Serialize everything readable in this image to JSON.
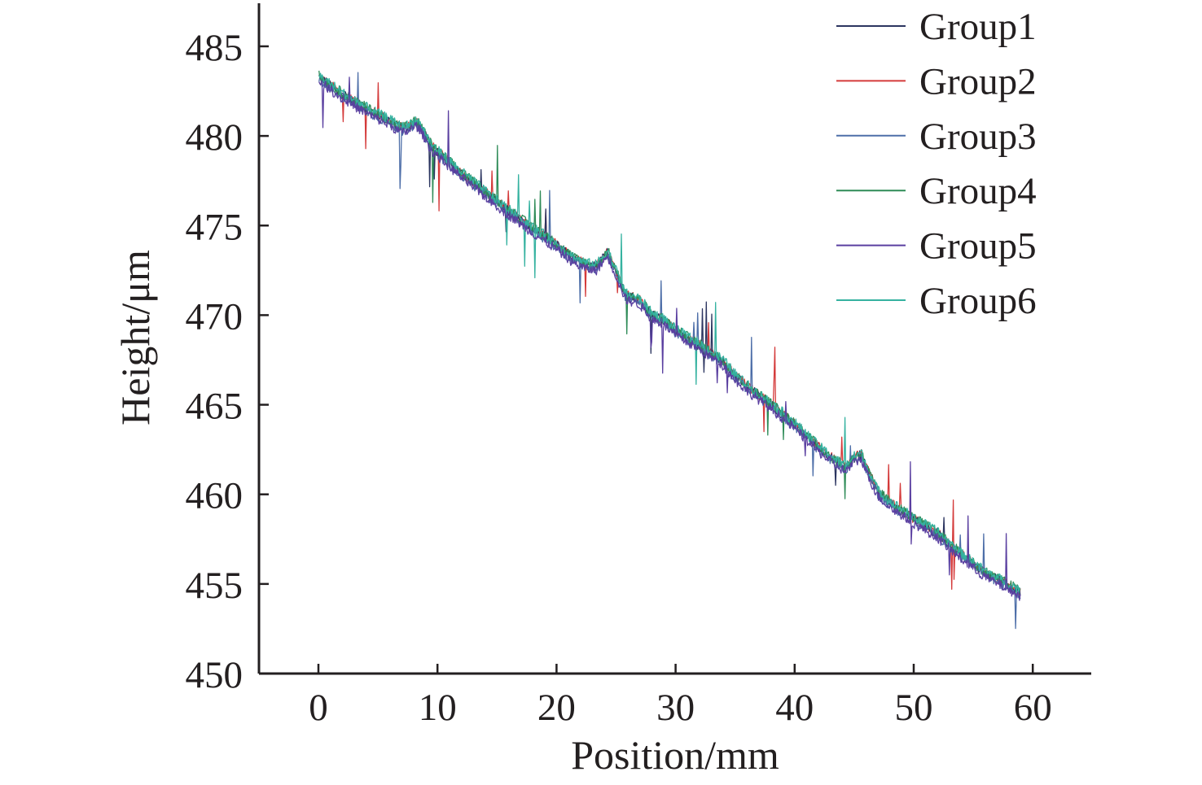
{
  "chart_data": {
    "type": "line",
    "title": "",
    "xlabel": "Position/mm",
    "ylabel": "Height/μm",
    "xlim": [
      -5,
      65
    ],
    "ylim": [
      450,
      487.5
    ],
    "xticks": [
      0,
      10,
      20,
      30,
      40,
      50,
      60
    ],
    "xtick_labels": [
      "0",
      "10",
      "20",
      "30",
      "40",
      "50",
      "60"
    ],
    "yticks": [
      450,
      455,
      460,
      465,
      470,
      475,
      480,
      485
    ],
    "ytick_labels": [
      "450",
      "455",
      "460",
      "465",
      "470",
      "475",
      "480",
      "485"
    ],
    "grid": false,
    "legend_position": "top-right",
    "baseline": {
      "x": [
        0,
        2,
        4,
        6,
        7,
        7.6,
        8.2,
        8.6,
        9.5,
        12,
        15,
        18,
        20,
        21.5,
        22.5,
        23.3,
        23.8,
        24.3,
        25,
        25.8,
        27,
        28,
        29,
        30,
        32,
        34,
        35,
        36,
        38,
        40,
        42,
        43.5,
        44.3,
        45,
        45.6,
        46.2,
        47,
        48,
        50,
        52,
        54,
        56,
        58,
        59
      ],
      "y": [
        483.3,
        482.3,
        481.5,
        480.8,
        480.4,
        480.5,
        480.8,
        480.5,
        479.4,
        477.9,
        476.3,
        474.8,
        473.9,
        473.1,
        472.8,
        472.7,
        473.1,
        473.5,
        472.4,
        471.1,
        470.8,
        470.0,
        469.7,
        469.1,
        468.3,
        467.4,
        466.6,
        466.0,
        465.0,
        463.9,
        462.6,
        461.8,
        461.5,
        462.0,
        462.2,
        461.2,
        460.1,
        459.5,
        458.6,
        457.8,
        456.6,
        455.6,
        454.9,
        454.5
      ]
    },
    "series": [
      {
        "name": "Group1",
        "color": "#2c3560"
      },
      {
        "name": "Group2",
        "color": "#d43a3a"
      },
      {
        "name": "Group3",
        "color": "#4d6ea8"
      },
      {
        "name": "Group4",
        "color": "#2e8b57"
      },
      {
        "name": "Group5",
        "color": "#5a3fa0"
      },
      {
        "name": "Group6",
        "color": "#35b2a0"
      }
    ]
  }
}
